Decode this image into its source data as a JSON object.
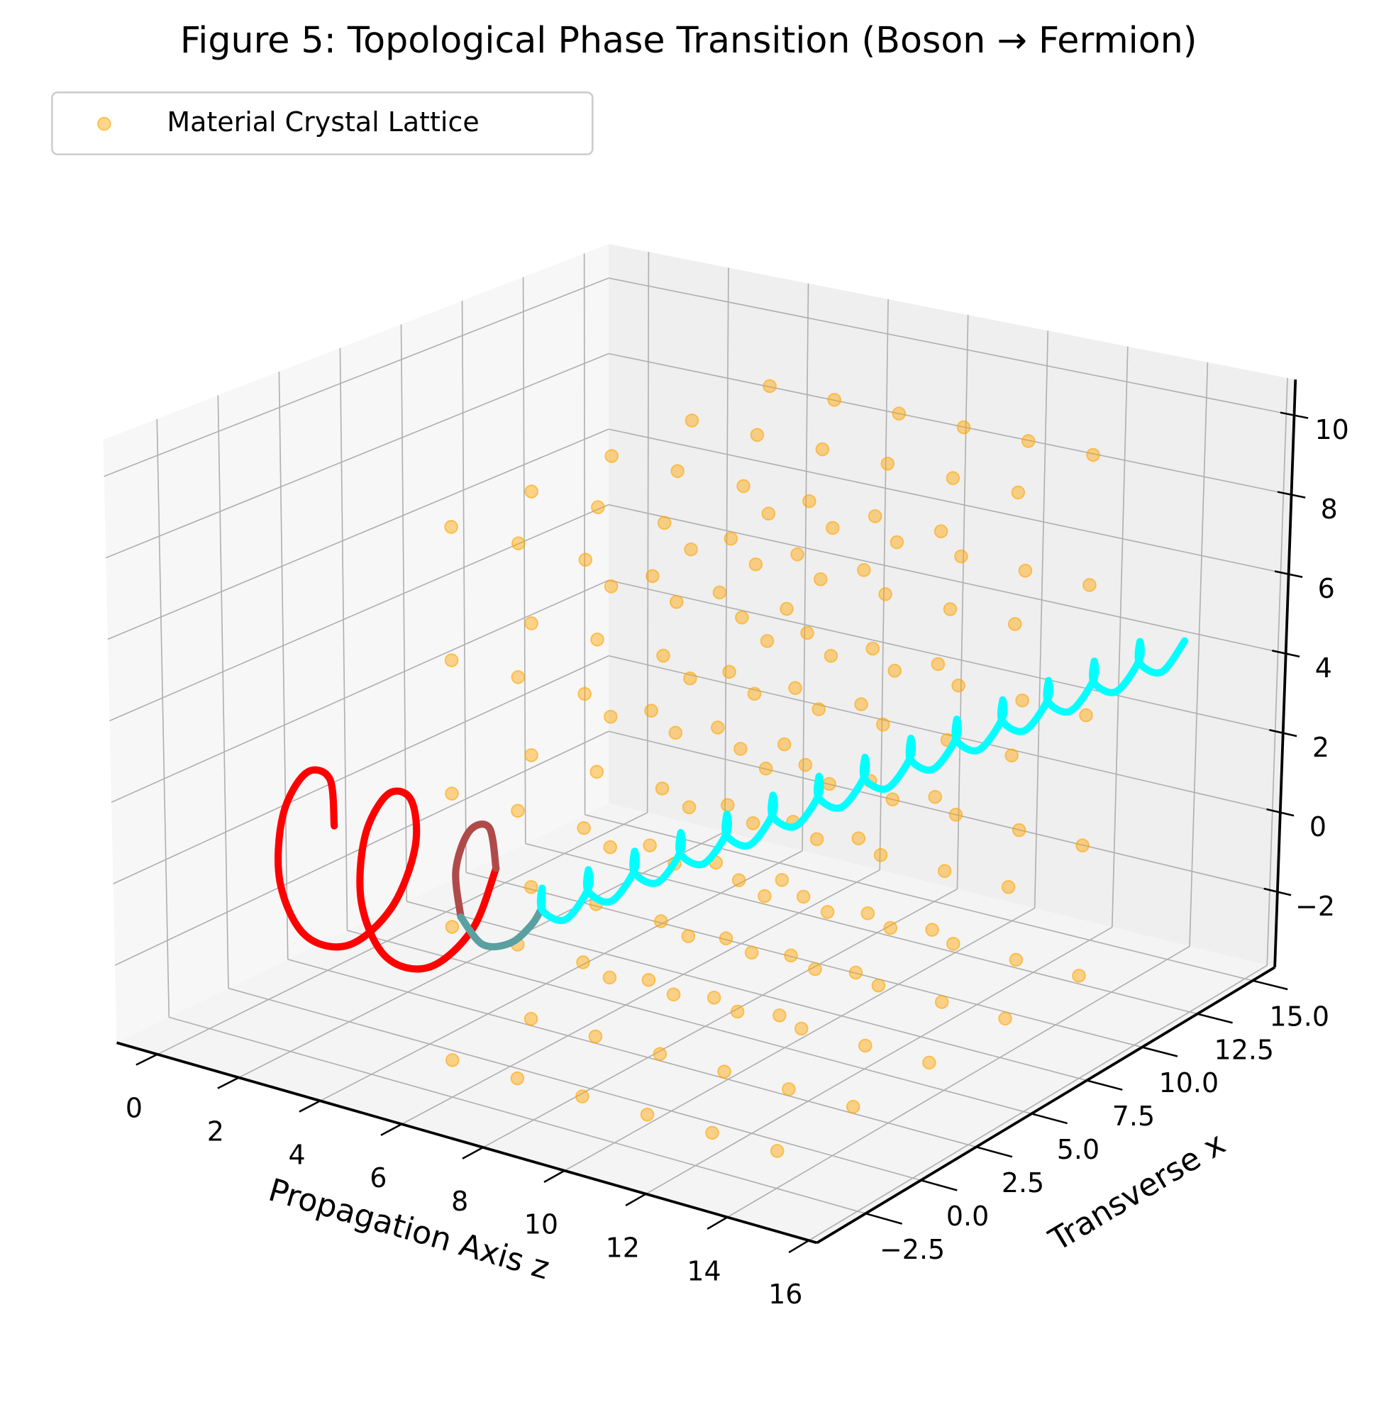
{
  "chart_data": {
    "type": "scatter3d",
    "title": "Figure 5: Topological Phase Transition (Boson → Fermion)",
    "xlabel": "Propagation Axis z",
    "ylabel": "Transverse x",
    "xlim": [
      -1,
      16.2
    ],
    "ylim": [
      -4.7,
      16
    ],
    "zlim": [
      -3.9,
      10.9
    ],
    "xticks": [
      0,
      2,
      4,
      6,
      8,
      10,
      12,
      14,
      16
    ],
    "yticks": [
      {
        "value": -2.5,
        "label": "−2.5"
      },
      {
        "value": 0,
        "label": "0.0"
      },
      2.5,
      {
        "value": 5,
        "label": "5.0"
      },
      7.5,
      {
        "value": 10,
        "label": "10.0"
      },
      12.5,
      {
        "value": 15,
        "label": "15.0"
      }
    ],
    "zticks": [
      {
        "value": -2,
        "label": "−2"
      },
      0,
      2,
      4,
      6,
      8,
      10
    ],
    "grid": true,
    "legend": "upper left",
    "series": [
      {
        "name": "Material Crystal Lattice",
        "type": "scatter",
        "color": "#ffa500",
        "x": [
          6,
          6,
          6,
          6,
          6,
          6,
          6,
          6,
          6,
          6,
          6,
          6,
          6,
          6,
          6,
          6,
          6,
          6,
          6,
          6,
          6,
          6,
          6,
          6,
          6,
          7.6,
          7.6,
          7.6,
          7.6,
          7.6,
          7.6,
          7.6,
          7.6,
          7.6,
          7.6,
          7.6,
          7.6,
          7.6,
          7.6,
          7.6,
          7.6,
          7.6,
          7.6,
          7.6,
          7.6,
          7.6,
          7.6,
          7.6,
          7.6,
          7.6,
          9.2,
          9.2,
          9.2,
          9.2,
          9.2,
          9.2,
          9.2,
          9.2,
          9.2,
          9.2,
          9.2,
          9.2,
          9.2,
          9.2,
          9.2,
          9.2,
          9.2,
          9.2,
          9.2,
          9.2,
          9.2,
          9.2,
          9.2,
          9.2,
          9.2,
          10.8,
          10.8,
          10.8,
          10.8,
          10.8,
          10.8,
          10.8,
          10.8,
          10.8,
          10.8,
          10.8,
          10.8,
          10.8,
          10.8,
          10.8,
          10.8,
          10.8,
          10.8,
          10.8,
          10.8,
          10.8,
          10.8,
          10.8,
          10.8,
          10.8,
          12.4,
          12.4,
          12.4,
          12.4,
          12.4,
          12.4,
          12.4,
          12.4,
          12.4,
          12.4,
          12.4,
          12.4,
          12.4,
          12.4,
          12.4,
          12.4,
          12.4,
          12.4,
          12.4,
          12.4,
          12.4,
          12.4,
          12.4,
          12.4,
          12.4,
          14,
          14,
          14,
          14,
          14,
          14,
          14,
          14,
          14,
          14,
          14,
          14,
          14,
          14,
          14,
          14,
          14,
          14,
          14,
          14,
          14,
          14,
          14,
          14,
          14
        ],
        "y": [
          -2.5,
          -2.5,
          -2.5,
          -2.5,
          -2.5,
          0.9,
          0.9,
          0.9,
          0.9,
          0.9,
          4.3,
          4.3,
          4.3,
          4.3,
          4.3,
          7.7,
          7.7,
          7.7,
          7.7,
          7.7,
          11,
          11,
          11,
          11,
          11,
          -2.5,
          -2.5,
          -2.5,
          -2.5,
          -2.5,
          0.9,
          0.9,
          0.9,
          0.9,
          0.9,
          4.3,
          4.3,
          4.3,
          4.3,
          4.3,
          7.7,
          7.7,
          7.7,
          7.7,
          7.7,
          11,
          11,
          11,
          11,
          11,
          -2.5,
          -2.5,
          -2.5,
          -2.5,
          -2.5,
          0.9,
          0.9,
          0.9,
          0.9,
          0.9,
          4.3,
          4.3,
          4.3,
          4.3,
          4.3,
          7.7,
          7.7,
          7.7,
          7.7,
          7.7,
          11,
          11,
          11,
          11,
          11,
          -2.5,
          -2.5,
          -2.5,
          -2.5,
          -2.5,
          0.9,
          0.9,
          0.9,
          0.9,
          0.9,
          4.3,
          4.3,
          4.3,
          4.3,
          4.3,
          7.7,
          7.7,
          7.7,
          7.7,
          7.7,
          11,
          11,
          11,
          11,
          11,
          -2.5,
          -2.5,
          -2.5,
          -2.5,
          -2.5,
          0.9,
          0.9,
          0.9,
          0.9,
          0.9,
          4.3,
          4.3,
          4.3,
          4.3,
          4.3,
          7.7,
          7.7,
          7.7,
          7.7,
          7.7,
          11,
          11,
          11,
          11,
          11,
          -2.5,
          -2.5,
          -2.5,
          -2.5,
          -2.5,
          0.9,
          0.9,
          0.9,
          0.9,
          0.9,
          4.3,
          4.3,
          4.3,
          4.3,
          4.3,
          7.7,
          7.7,
          7.7,
          7.7,
          7.7,
          11,
          11,
          11,
          11,
          11
        ],
        "z": [
          -3,
          0.25,
          3.5,
          6.75,
          10,
          -3,
          0.25,
          3.5,
          6.75,
          10,
          -3,
          0.25,
          3.5,
          6.75,
          10,
          -3,
          0.25,
          3.5,
          6.75,
          10,
          -3,
          0.25,
          3.5,
          6.75,
          10,
          -3,
          0.25,
          3.5,
          6.75,
          10,
          -3,
          0.25,
          3.5,
          6.75,
          10,
          -3,
          0.25,
          3.5,
          6.75,
          10,
          -3,
          0.25,
          3.5,
          6.75,
          10,
          -3,
          0.25,
          3.5,
          6.75,
          10,
          -3,
          0.25,
          3.5,
          6.75,
          10,
          -3,
          0.25,
          3.5,
          6.75,
          10,
          -3,
          0.25,
          3.5,
          6.75,
          10,
          -3,
          0.25,
          3.5,
          6.75,
          10,
          -3,
          0.25,
          3.5,
          6.75,
          10,
          -3,
          0.25,
          3.5,
          6.75,
          10,
          -3,
          0.25,
          3.5,
          6.75,
          10,
          -3,
          0.25,
          3.5,
          6.75,
          10,
          -3,
          0.25,
          3.5,
          6.75,
          10,
          -3,
          0.25,
          3.5,
          6.75,
          10,
          -3,
          0.25,
          3.5,
          6.75,
          10,
          -3,
          0.25,
          3.5,
          6.75,
          10,
          -3,
          0.25,
          3.5,
          6.75,
          10,
          -3,
          0.25,
          3.5,
          6.75,
          10,
          -3,
          0.25,
          3.5,
          6.75,
          10,
          -3,
          0.25,
          3.5,
          6.75,
          10,
          -3,
          0.25,
          3.5,
          6.75,
          10,
          -3,
          0.25,
          3.5,
          6.75,
          10,
          -3,
          0.25,
          3.5,
          6.75,
          10,
          -3,
          0.25,
          3.5,
          6.75,
          10
        ]
      },
      {
        "type": "line",
        "color": "#ff0000",
        "x": [
          0.5,
          0.75,
          1,
          1.25,
          1.5,
          1.75,
          2,
          2.25,
          2.5,
          2.75,
          3,
          3.25,
          3.5,
          3.75,
          4,
          4.25,
          4.5
        ],
        "y": [
          2,
          1.41,
          0,
          -1.41,
          -2,
          -1.41,
          0,
          1.41,
          2,
          1.41,
          0,
          -1.41,
          -2,
          -1.41,
          0,
          1.41,
          2
        ],
        "z": [
          0,
          1.41,
          2,
          1.41,
          0,
          -1.41,
          -2,
          -1.41,
          0,
          1.41,
          2,
          1.41,
          0,
          -1.41,
          -2,
          -1.41,
          0
        ]
      },
      {
        "type": "line",
        "color": "#b04a4a",
        "x": [
          4.5,
          4.75,
          5,
          5.25,
          5.5
        ],
        "y": [
          2,
          1.28,
          0,
          -1.02,
          -1.25
        ],
        "z": [
          0,
          1.28,
          1.62,
          1.02,
          0
        ]
      },
      {
        "type": "line",
        "color": "#5aa0a0",
        "x": [
          5.5,
          5.75,
          6,
          6.25,
          6.5
        ],
        "y": [
          -1.25,
          -0.75,
          0,
          0.49,
          0.5
        ],
        "z": [
          0,
          -0.75,
          -0.87,
          -0.49,
          0
        ]
      },
      {
        "type": "line",
        "color": "#00ffff",
        "x": [
          6.5,
          6.67,
          6.84,
          7.01,
          7.18,
          7.35,
          7.52,
          7.69,
          7.86,
          8.03,
          8.2,
          8.37,
          8.54,
          8.71,
          8.88,
          9.05,
          9.22,
          9.39,
          9.56,
          9.73,
          9.9,
          10.07,
          10.24,
          10.41,
          10.58,
          10.75,
          10.92,
          11.09,
          11.26,
          11.43,
          11.6,
          11.77,
          11.94,
          12.11,
          12.28,
          12.45,
          12.62,
          12.79,
          12.96,
          13.13,
          13.3,
          13.47,
          13.64,
          13.81,
          13.98,
          14.15,
          14.32,
          14.49,
          14.66,
          14.83,
          15,
          15.17,
          15.34,
          15.51,
          15.68,
          15.85,
          16.02
        ],
        "y": [
          0.5,
          0.2,
          -0.1,
          0.6,
          1.3,
          1,
          0.7,
          1.4,
          2.1,
          1.8,
          1.5,
          2.2,
          2.9,
          2.6,
          2.3,
          3,
          3.7,
          3.4,
          3.1,
          3.8,
          4.5,
          4.2,
          3.9,
          4.6,
          5.3,
          5,
          4.7,
          5.4,
          6.1,
          5.8,
          5.5,
          6.2,
          6.9,
          6.6,
          6.3,
          7,
          7.7,
          7.4,
          7.1,
          7.8,
          8.5,
          8.2,
          7.9,
          8.6,
          9.3,
          9,
          8.7,
          9.4,
          10.1,
          9.8,
          9.5,
          10.2,
          10.9,
          10.6,
          10.3,
          11,
          11.7
        ],
        "z": [
          0,
          0.6,
          0.2,
          -0.2,
          0.4,
          1,
          0.6,
          0.2,
          0.8,
          1.4,
          1,
          0.6,
          1.2,
          1.8,
          1.4,
          1,
          1.6,
          2.2,
          1.8,
          1.4,
          2,
          2.6,
          2.2,
          1.8,
          2.4,
          3,
          2.6,
          2.2,
          2.8,
          3.4,
          3,
          2.6,
          3.2,
          3.8,
          3.4,
          3,
          3.6,
          4.2,
          3.8,
          3.4,
          4,
          4.6,
          4.2,
          3.8,
          4.4,
          5,
          4.6,
          4.2,
          4.8,
          5.4,
          5,
          4.6,
          5.2,
          5.8,
          5.4,
          5,
          5.6
        ]
      }
    ]
  }
}
